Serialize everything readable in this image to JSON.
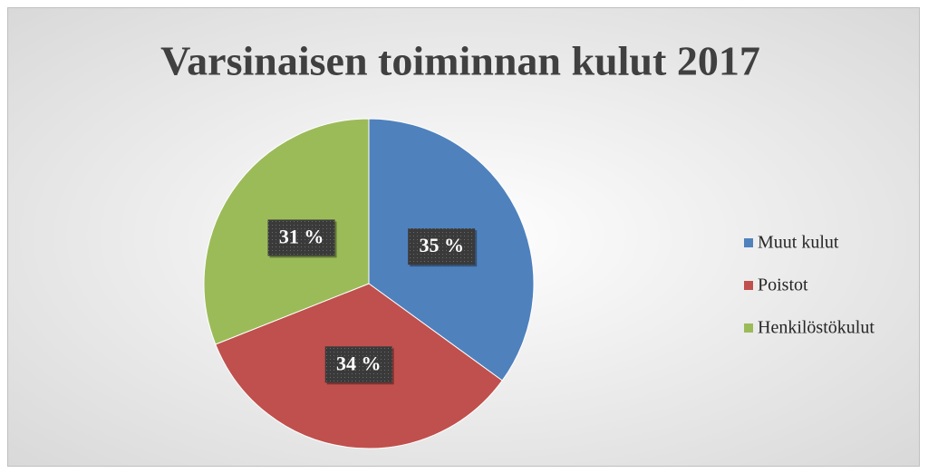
{
  "chart_data": {
    "type": "pie",
    "title": "Varsinaisen toiminnan kulut 2017",
    "categories": [
      "Muut kulut",
      "Poistot",
      "Henkilöstökulut"
    ],
    "values": [
      35,
      34,
      31
    ],
    "value_labels": [
      "35 %",
      "34 %",
      "31 %"
    ],
    "colors": [
      "#4f81bd",
      "#c0504d",
      "#9bbb59"
    ],
    "legend": "right"
  }
}
